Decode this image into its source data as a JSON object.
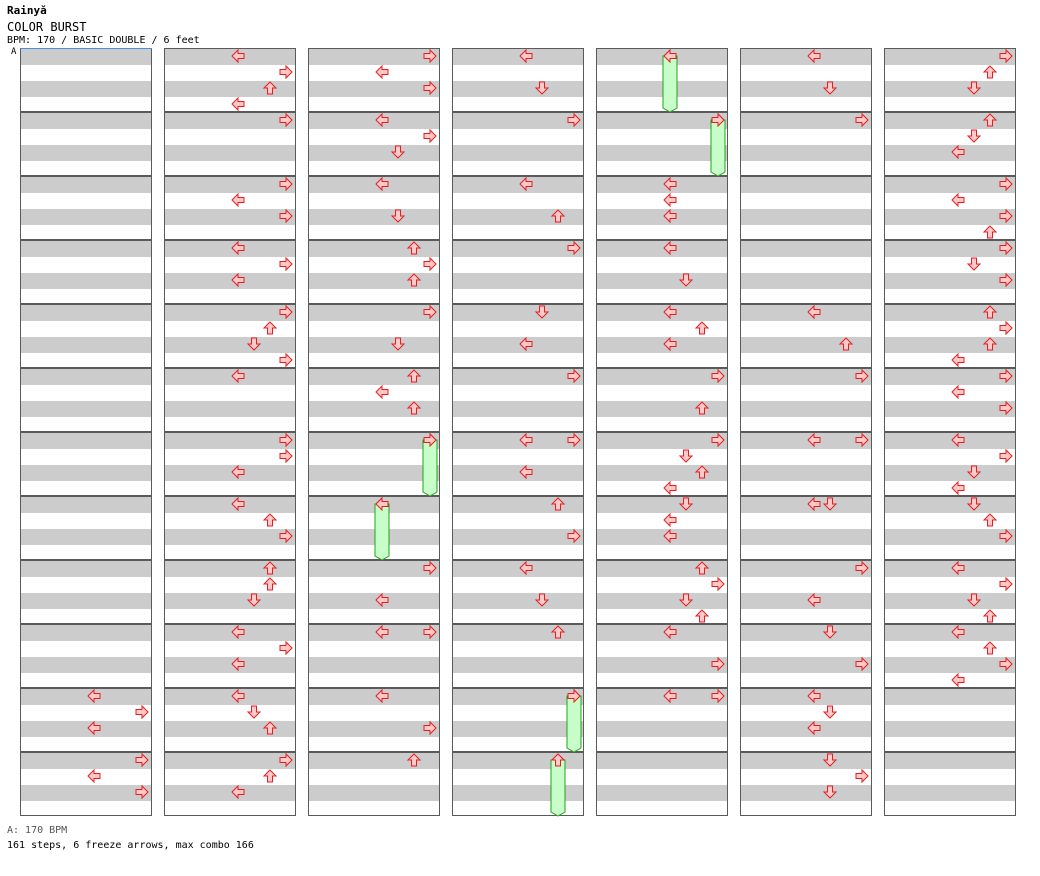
{
  "header": {
    "artist": "Rainyǎ",
    "title": "COLOR BURST",
    "info": "BPM: 170 / BASIC DOUBLE / 6 feet"
  },
  "bpm_marker": "A",
  "footer": {
    "bpm_legend": "A: 170 BPM",
    "stats": "161 steps, 6 freeze arrows, max combo 166"
  },
  "colors": {
    "arrow_fill": "#ffc8c8",
    "arrow_stroke": "#e02020",
    "freeze_fill": "#c8ffc8",
    "freeze_stroke": "#20a020",
    "band_gray": "#cccccc",
    "bpm_line": "#4a8fd8"
  },
  "chart": {
    "columns": 7,
    "rows": 12,
    "beats_per_measure": 4,
    "notes_by_column": [
      [
        {
          "m": 10,
          "b": 0,
          "d": "left"
        },
        {
          "m": 10,
          "b": 1,
          "d": "right"
        },
        {
          "m": 10,
          "b": 2,
          "d": "left"
        },
        {
          "m": 11,
          "b": 0,
          "d": "right"
        },
        {
          "m": 11,
          "b": 1,
          "d": "left"
        },
        {
          "m": 11,
          "b": 2,
          "d": "right"
        }
      ],
      [
        {
          "m": 0,
          "b": 0,
          "d": "left"
        },
        {
          "m": 0,
          "b": 1,
          "d": "right"
        },
        {
          "m": 0,
          "b": 2,
          "d": "up"
        },
        {
          "m": 0,
          "b": 3,
          "d": "left"
        },
        {
          "m": 1,
          "b": 0,
          "d": "right"
        },
        {
          "m": 2,
          "b": 0,
          "d": "right"
        },
        {
          "m": 2,
          "b": 1,
          "d": "left"
        },
        {
          "m": 2,
          "b": 2,
          "d": "right"
        },
        {
          "m": 3,
          "b": 0,
          "d": "left"
        },
        {
          "m": 3,
          "b": 1,
          "d": "right"
        },
        {
          "m": 3,
          "b": 2,
          "d": "left"
        },
        {
          "m": 4,
          "b": 0,
          "d": "right"
        },
        {
          "m": 4,
          "b": 1,
          "d": "up"
        },
        {
          "m": 4,
          "b": 2,
          "d": "down"
        },
        {
          "m": 4,
          "b": 3,
          "d": "right"
        },
        {
          "m": 5,
          "b": 0,
          "d": "left"
        },
        {
          "m": 6,
          "b": 0,
          "d": "right"
        },
        {
          "m": 6,
          "b": 1,
          "d": "right"
        },
        {
          "m": 6,
          "b": 2,
          "d": "left"
        },
        {
          "m": 7,
          "b": 0,
          "d": "left"
        },
        {
          "m": 7,
          "b": 1,
          "d": "up"
        },
        {
          "m": 7,
          "b": 2,
          "d": "right"
        },
        {
          "m": 8,
          "b": 0,
          "d": "up"
        },
        {
          "m": 8,
          "b": 1,
          "d": "up"
        },
        {
          "m": 8,
          "b": 2,
          "d": "down"
        },
        {
          "m": 9,
          "b": 0,
          "d": "left"
        },
        {
          "m": 9,
          "b": 1,
          "d": "right"
        },
        {
          "m": 9,
          "b": 2,
          "d": "left"
        },
        {
          "m": 10,
          "b": 0,
          "d": "left"
        },
        {
          "m": 10,
          "b": 1,
          "d": "down"
        },
        {
          "m": 10,
          "b": 2,
          "d": "up"
        },
        {
          "m": 11,
          "b": 0,
          "d": "right"
        },
        {
          "m": 11,
          "b": 1,
          "d": "up"
        },
        {
          "m": 11,
          "b": 2,
          "d": "left"
        }
      ],
      [
        {
          "m": 0,
          "b": 0,
          "d": "right"
        },
        {
          "m": 0,
          "b": 1,
          "d": "left"
        },
        {
          "m": 0,
          "b": 2,
          "d": "right"
        },
        {
          "m": 1,
          "b": 0,
          "d": "left"
        },
        {
          "m": 1,
          "b": 1,
          "d": "right"
        },
        {
          "m": 1,
          "b": 2,
          "d": "down"
        },
        {
          "m": 2,
          "b": 0,
          "d": "left"
        },
        {
          "m": 2,
          "b": 2,
          "d": "down"
        },
        {
          "m": 3,
          "b": 0,
          "d": "up"
        },
        {
          "m": 3,
          "b": 1,
          "d": "right"
        },
        {
          "m": 3,
          "b": 2,
          "d": "up"
        },
        {
          "m": 4,
          "b": 0,
          "d": "right"
        },
        {
          "m": 4,
          "b": 2,
          "d": "down"
        },
        {
          "m": 5,
          "b": 0,
          "d": "up"
        },
        {
          "m": 5,
          "b": 1,
          "d": "left"
        },
        {
          "m": 5,
          "b": 2,
          "d": "up"
        },
        {
          "m": 6,
          "b": 0,
          "d": "right"
        },
        {
          "m": 7,
          "b": 0,
          "d": "left"
        },
        {
          "m": 8,
          "b": 0,
          "d": "right"
        },
        {
          "m": 8,
          "b": 2,
          "d": "left"
        },
        {
          "m": 9,
          "b": 0,
          "d": "right"
        },
        {
          "m": 9,
          "b": 0,
          "d": "left"
        },
        {
          "m": 10,
          "b": 0,
          "d": "left"
        },
        {
          "m": 10,
          "b": 2,
          "d": "right"
        },
        {
          "m": 11,
          "b": 0,
          "d": "up"
        }
      ],
      [
        {
          "m": 0,
          "b": 0,
          "d": "left"
        },
        {
          "m": 0,
          "b": 2,
          "d": "down"
        },
        {
          "m": 1,
          "b": 0,
          "d": "right"
        },
        {
          "m": 2,
          "b": 0,
          "d": "left"
        },
        {
          "m": 2,
          "b": 2,
          "d": "up"
        },
        {
          "m": 3,
          "b": 0,
          "d": "right"
        },
        {
          "m": 4,
          "b": 0,
          "d": "down"
        },
        {
          "m": 4,
          "b": 2,
          "d": "left"
        },
        {
          "m": 5,
          "b": 0,
          "d": "right"
        },
        {
          "m": 6,
          "b": 0,
          "d": "right"
        },
        {
          "m": 6,
          "b": 0,
          "d": "left"
        },
        {
          "m": 6,
          "b": 2,
          "d": "left"
        },
        {
          "m": 7,
          "b": 0,
          "d": "up"
        },
        {
          "m": 7,
          "b": 2,
          "d": "right"
        },
        {
          "m": 8,
          "b": 0,
          "d": "left"
        },
        {
          "m": 8,
          "b": 2,
          "d": "down"
        },
        {
          "m": 9,
          "b": 0,
          "d": "up"
        },
        {
          "m": 10,
          "b": 0,
          "d": "right"
        },
        {
          "m": 11,
          "b": 0,
          "d": "up"
        }
      ],
      [
        {
          "m": 0,
          "b": 0,
          "d": "left"
        },
        {
          "m": 1,
          "b": 0,
          "d": "right"
        },
        {
          "m": 2,
          "b": 0,
          "d": "left"
        },
        {
          "m": 2,
          "b": 1,
          "d": "left"
        },
        {
          "m": 2,
          "b": 2,
          "d": "left"
        },
        {
          "m": 3,
          "b": 0,
          "d": "left"
        },
        {
          "m": 3,
          "b": 2,
          "d": "down"
        },
        {
          "m": 4,
          "b": 0,
          "d": "left"
        },
        {
          "m": 4,
          "b": 1,
          "d": "up"
        },
        {
          "m": 4,
          "b": 2,
          "d": "left"
        },
        {
          "m": 5,
          "b": 0,
          "d": "right"
        },
        {
          "m": 5,
          "b": 2,
          "d": "up"
        },
        {
          "m": 6,
          "b": 0,
          "d": "right"
        },
        {
          "m": 6,
          "b": 1,
          "d": "down"
        },
        {
          "m": 6,
          "b": 2,
          "d": "up"
        },
        {
          "m": 6,
          "b": 3,
          "d": "left"
        },
        {
          "m": 7,
          "b": 0,
          "d": "down"
        },
        {
          "m": 7,
          "b": 1,
          "d": "left"
        },
        {
          "m": 7,
          "b": 2,
          "d": "left"
        },
        {
          "m": 8,
          "b": 0,
          "d": "up"
        },
        {
          "m": 8,
          "b": 1,
          "d": "right"
        },
        {
          "m": 8,
          "b": 2,
          "d": "down"
        },
        {
          "m": 8,
          "b": 3,
          "d": "up"
        },
        {
          "m": 9,
          "b": 0,
          "d": "left"
        },
        {
          "m": 9,
          "b": 2,
          "d": "right"
        },
        {
          "m": 10,
          "b": 0,
          "d": "left"
        },
        {
          "m": 10,
          "b": 0,
          "d": "right"
        }
      ],
      [
        {
          "m": 0,
          "b": 0,
          "d": "left"
        },
        {
          "m": 0,
          "b": 2,
          "d": "down"
        },
        {
          "m": 1,
          "b": 0,
          "d": "right"
        },
        {
          "m": 4,
          "b": 0,
          "d": "left"
        },
        {
          "m": 4,
          "b": 2,
          "d": "up"
        },
        {
          "m": 5,
          "b": 0,
          "d": "right"
        },
        {
          "m": 6,
          "b": 0,
          "d": "left"
        },
        {
          "m": 6,
          "b": 0,
          "d": "right"
        },
        {
          "m": 7,
          "b": 0,
          "d": "down"
        },
        {
          "m": 7,
          "b": 0,
          "d": "left"
        },
        {
          "m": 8,
          "b": 0,
          "d": "right"
        },
        {
          "m": 8,
          "b": 2,
          "d": "left"
        },
        {
          "m": 9,
          "b": 0,
          "d": "down"
        },
        {
          "m": 9,
          "b": 2,
          "d": "right"
        },
        {
          "m": 10,
          "b": 0,
          "d": "left"
        },
        {
          "m": 10,
          "b": 1,
          "d": "down"
        },
        {
          "m": 10,
          "b": 2,
          "d": "left"
        },
        {
          "m": 11,
          "b": 0,
          "d": "down"
        },
        {
          "m": 11,
          "b": 1,
          "d": "right"
        },
        {
          "m": 11,
          "b": 2,
          "d": "down"
        }
      ],
      [
        {
          "m": 0,
          "b": 0,
          "d": "right"
        },
        {
          "m": 0,
          "b": 1,
          "d": "up"
        },
        {
          "m": 0,
          "b": 2,
          "d": "down"
        },
        {
          "m": 1,
          "b": 0,
          "d": "up"
        },
        {
          "m": 1,
          "b": 1,
          "d": "down"
        },
        {
          "m": 1,
          "b": 2,
          "d": "left"
        },
        {
          "m": 2,
          "b": 0,
          "d": "right"
        },
        {
          "m": 2,
          "b": 1,
          "d": "left"
        },
        {
          "m": 2,
          "b": 2,
          "d": "right"
        },
        {
          "m": 2,
          "b": 3,
          "d": "up"
        },
        {
          "m": 3,
          "b": 0,
          "d": "right"
        },
        {
          "m": 3,
          "b": 1,
          "d": "down"
        },
        {
          "m": 3,
          "b": 2,
          "d": "right"
        },
        {
          "m": 4,
          "b": 0,
          "d": "up"
        },
        {
          "m": 4,
          "b": 1,
          "d": "right"
        },
        {
          "m": 4,
          "b": 2,
          "d": "up"
        },
        {
          "m": 4,
          "b": 3,
          "d": "left"
        },
        {
          "m": 5,
          "b": 0,
          "d": "right"
        },
        {
          "m": 5,
          "b": 1,
          "d": "left"
        },
        {
          "m": 5,
          "b": 2,
          "d": "right"
        },
        {
          "m": 6,
          "b": 0,
          "d": "left"
        },
        {
          "m": 6,
          "b": 1,
          "d": "right"
        },
        {
          "m": 6,
          "b": 2,
          "d": "down"
        },
        {
          "m": 6,
          "b": 3,
          "d": "left"
        },
        {
          "m": 7,
          "b": 0,
          "d": "down"
        },
        {
          "m": 7,
          "b": 1,
          "d": "up"
        },
        {
          "m": 7,
          "b": 2,
          "d": "right"
        },
        {
          "m": 8,
          "b": 0,
          "d": "left"
        },
        {
          "m": 8,
          "b": 1,
          "d": "right"
        },
        {
          "m": 8,
          "b": 2,
          "d": "down"
        },
        {
          "m": 8,
          "b": 3,
          "d": "up"
        },
        {
          "m": 9,
          "b": 0,
          "d": "left"
        },
        {
          "m": 9,
          "b": 1,
          "d": "up"
        },
        {
          "m": 9,
          "b": 2,
          "d": "right"
        },
        {
          "m": 9,
          "b": 3,
          "d": "left"
        }
      ]
    ],
    "freeze_arrows": [
      {
        "col": 4,
        "m": 0,
        "b": 0,
        "len_beats": 3.5,
        "d": "left"
      },
      {
        "col": 4,
        "m": 1,
        "b": 0,
        "len_beats": 3.5,
        "d": "right"
      },
      {
        "col": 2,
        "m": 6,
        "b": 0,
        "len_beats": 3.5,
        "d": "right"
      },
      {
        "col": 2,
        "m": 7,
        "b": 0,
        "len_beats": 3.5,
        "d": "left"
      },
      {
        "col": 3,
        "m": 10,
        "b": 0,
        "len_beats": 3.5,
        "d": "right"
      },
      {
        "col": 3,
        "m": 11,
        "b": 0,
        "len_beats": 3.5,
        "d": "up"
      }
    ]
  }
}
